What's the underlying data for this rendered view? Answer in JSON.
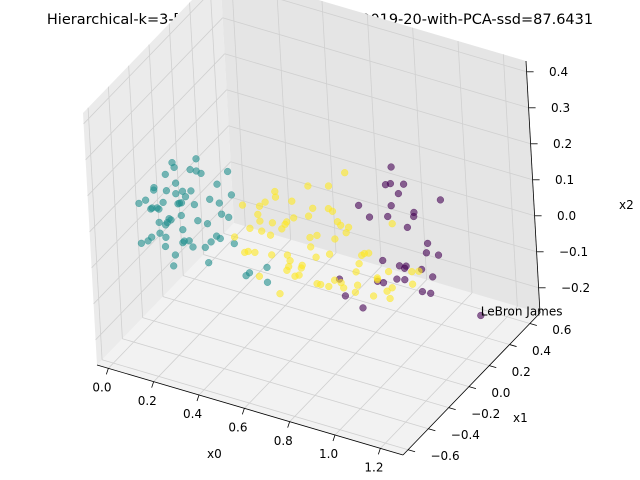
{
  "chart_data": {
    "type": "scatter",
    "title": "Hierarchical-k=3-['PTS', 'AST', 'REB', 'BLK']-2019-20-with-PCA-ssd=87.6431",
    "xlabel": "x0",
    "ylabel": "x1",
    "zlabel": "x2",
    "projection": "3d",
    "xlim": [
      -0.05,
      1.3
    ],
    "ylim": [
      -0.65,
      0.7
    ],
    "zlim": [
      -0.27,
      0.43
    ],
    "xticks": [
      "0.0",
      "0.2",
      "0.4",
      "0.6",
      "0.8",
      "1.0",
      "1.2"
    ],
    "yticks": [
      "−0.6",
      "−0.4",
      "−0.2",
      "0.0",
      "0.2",
      "0.4",
      "0.6"
    ],
    "zticks": [
      "−0.2",
      "−0.1",
      "0.0",
      "0.1",
      "0.2",
      "0.3",
      "0.4"
    ],
    "grid": true,
    "colors": {
      "cluster_0": "#440154",
      "cluster_1": "#21908d",
      "cluster_2": "#fde725"
    },
    "annotations": [
      {
        "text": "LeBron James",
        "x": 1.13,
        "y": 0.5,
        "z": -0.25
      }
    ],
    "series": [
      {
        "cluster": 0,
        "points": [
          [
            1.2,
            -0.35,
            0.35
          ],
          [
            1.15,
            -0.3,
            0.4
          ],
          [
            1.25,
            -0.4,
            0.4
          ],
          [
            1.28,
            -0.45,
            0.3
          ],
          [
            0.95,
            0.1,
            0.2
          ],
          [
            1.0,
            -0.05,
            0.25
          ],
          [
            1.05,
            -0.15,
            0.2
          ],
          [
            0.9,
            0.2,
            0.1
          ],
          [
            1.1,
            -0.2,
            0.05
          ],
          [
            0.95,
            0.3,
            0.05
          ],
          [
            1.0,
            0.1,
            -0.02
          ],
          [
            1.1,
            0.2,
            0.0
          ],
          [
            0.85,
            0.35,
            -0.12
          ],
          [
            0.9,
            0.45,
            -0.15
          ],
          [
            0.8,
            0.5,
            -0.18
          ],
          [
            0.75,
            0.4,
            -0.2
          ],
          [
            0.7,
            0.3,
            -0.25
          ],
          [
            0.8,
            0.3,
            -0.1
          ],
          [
            0.95,
            0.4,
            -0.08
          ],
          [
            0.65,
            0.2,
            -0.15
          ],
          [
            0.7,
            0.45,
            -0.22
          ],
          [
            0.85,
            0.55,
            -0.25
          ],
          [
            0.75,
            0.6,
            -0.25
          ],
          [
            0.9,
            0.55,
            -0.2
          ],
          [
            1.0,
            0.2,
            0.1
          ],
          [
            0.85,
            0.0,
            0.15
          ],
          [
            1.15,
            0.0,
            0.1
          ],
          [
            0.8,
            0.2,
            0.05
          ],
          [
            1.2,
            -0.1,
            0.0
          ],
          [
            1.13,
            0.5,
            -0.25
          ],
          [
            0.6,
            0.35,
            -0.25
          ],
          [
            1.05,
            0.35,
            0.1
          ]
        ]
      },
      {
        "cluster": 1,
        "points": [
          [
            0.05,
            -0.2,
            0.05
          ],
          [
            0.08,
            -0.22,
            0.08
          ],
          [
            0.1,
            -0.25,
            0.03
          ],
          [
            0.12,
            -0.18,
            0.1
          ],
          [
            0.06,
            -0.15,
            0.0
          ],
          [
            0.14,
            -0.28,
            0.06
          ],
          [
            0.03,
            -0.24,
            -0.02
          ],
          [
            0.16,
            -0.2,
            0.12
          ],
          [
            0.09,
            -0.3,
            0.09
          ],
          [
            0.11,
            -0.12,
            0.02
          ],
          [
            0.18,
            -0.25,
            0.0
          ],
          [
            0.04,
            -0.1,
            0.07
          ],
          [
            0.2,
            -0.3,
            0.05
          ],
          [
            0.13,
            -0.16,
            -0.04
          ],
          [
            0.07,
            -0.28,
            0.13
          ],
          [
            0.15,
            -0.1,
            0.09
          ],
          [
            0.22,
            -0.22,
            0.1
          ],
          [
            0.01,
            -0.18,
            0.04
          ],
          [
            0.17,
            -0.32,
            -0.02
          ],
          [
            0.1,
            -0.05,
            0.05
          ],
          [
            0.24,
            -0.15,
            0.03
          ],
          [
            0.05,
            -0.32,
            0.11
          ],
          [
            0.19,
            -0.08,
            0.14
          ],
          [
            0.12,
            -0.35,
            0.07
          ],
          [
            0.26,
            -0.28,
            0.08
          ],
          [
            0.02,
            -0.06,
            0.1
          ],
          [
            0.21,
            -0.12,
            -0.05
          ],
          [
            0.08,
            -0.38,
            0.02
          ],
          [
            0.14,
            -0.02,
            0.12
          ],
          [
            0.28,
            -0.2,
            0.12
          ],
          [
            0.0,
            -0.28,
            0.08
          ],
          [
            0.18,
            -0.38,
            0.1
          ],
          [
            0.25,
            -0.05,
            0.06
          ],
          [
            0.09,
            -0.12,
            0.15
          ],
          [
            0.3,
            -0.25,
            0.02
          ],
          [
            0.16,
            -0.26,
            0.16
          ],
          [
            0.04,
            -0.36,
            0.0
          ],
          [
            0.22,
            -0.34,
            0.14
          ],
          [
            0.27,
            -0.1,
            -0.02
          ],
          [
            0.12,
            -0.08,
            -0.06
          ],
          [
            0.19,
            -0.18,
            0.18
          ],
          [
            0.07,
            -0.2,
            -0.05
          ],
          [
            0.32,
            -0.18,
            0.08
          ],
          [
            0.11,
            -0.4,
            0.12
          ],
          [
            0.23,
            -0.02,
            0.1
          ],
          [
            0.35,
            -0.3,
            0.06
          ],
          [
            0.15,
            -0.3,
            -0.06
          ],
          [
            0.28,
            -0.38,
            0.04
          ],
          [
            0.06,
            -0.04,
            0.02
          ],
          [
            0.2,
            -0.14,
            0.2
          ],
          [
            0.34,
            -0.12,
            0.12
          ],
          [
            0.02,
            -0.14,
            -0.04
          ],
          [
            0.18,
            -0.42,
            0.06
          ],
          [
            0.26,
            -0.2,
            -0.06
          ],
          [
            0.1,
            -0.34,
            0.16
          ],
          [
            0.3,
            -0.06,
            0.16
          ],
          [
            0.38,
            -0.24,
            0.1
          ],
          [
            0.13,
            -0.22,
            0.2
          ],
          [
            0.24,
            -0.4,
            0.16
          ],
          [
            0.36,
            -0.16,
            0.0
          ],
          [
            0.32,
            0.05,
            -0.15
          ],
          [
            0.28,
            0.1,
            -0.18
          ],
          [
            0.35,
            0.15,
            -0.2
          ],
          [
            0.4,
            0.05,
            -0.12
          ]
        ]
      },
      {
        "cluster": 2,
        "points": [
          [
            0.45,
            -0.25,
            0.15
          ],
          [
            0.5,
            -0.2,
            0.1
          ],
          [
            0.55,
            -0.3,
            0.18
          ],
          [
            0.6,
            -0.25,
            0.2
          ],
          [
            0.48,
            -0.1,
            0.12
          ],
          [
            0.52,
            -0.15,
            0.05
          ],
          [
            0.58,
            -0.05,
            0.08
          ],
          [
            0.62,
            -0.2,
            0.12
          ],
          [
            0.66,
            -0.3,
            0.15
          ],
          [
            0.7,
            -0.15,
            0.22
          ],
          [
            0.44,
            -0.32,
            0.08
          ],
          [
            0.54,
            -0.38,
            0.14
          ],
          [
            0.68,
            -0.05,
            0.05
          ],
          [
            0.74,
            -0.2,
            0.18
          ],
          [
            0.5,
            0.0,
            0.02
          ],
          [
            0.6,
            0.05,
            0.0
          ],
          [
            0.72,
            -0.35,
            0.24
          ],
          [
            0.78,
            -0.1,
            0.15
          ],
          [
            0.46,
            -0.18,
            0.0
          ],
          [
            0.56,
            -0.08,
            -0.05
          ],
          [
            0.64,
            -0.12,
            -0.02
          ],
          [
            0.76,
            -0.28,
            0.1
          ],
          [
            0.82,
            -0.22,
            0.2
          ],
          [
            0.42,
            -0.05,
            0.06
          ],
          [
            0.58,
            -0.4,
            0.02
          ],
          [
            0.66,
            0.1,
            -0.05
          ],
          [
            0.8,
            0.0,
            0.08
          ],
          [
            0.86,
            -0.15,
            0.12
          ],
          [
            0.48,
            0.08,
            -0.08
          ],
          [
            0.62,
            -0.3,
            -0.05
          ],
          [
            0.7,
            0.05,
            -0.1
          ],
          [
            0.74,
            -0.4,
            0.05
          ],
          [
            0.84,
            0.05,
            0.0
          ],
          [
            0.9,
            -0.1,
            0.05
          ],
          [
            0.52,
            0.12,
            -0.12
          ],
          [
            0.68,
            0.15,
            -0.14
          ],
          [
            0.56,
            -0.45,
            0.1
          ],
          [
            0.88,
            -0.3,
            0.15
          ],
          [
            0.78,
            0.12,
            -0.06
          ],
          [
            0.94,
            -0.05,
            -0.02
          ],
          [
            0.6,
            0.2,
            -0.18
          ],
          [
            0.72,
            0.22,
            -0.16
          ],
          [
            0.44,
            0.15,
            -0.15
          ],
          [
            0.82,
            0.2,
            -0.12
          ],
          [
            0.92,
            0.1,
            -0.05
          ],
          [
            0.4,
            -0.15,
            -0.02
          ],
          [
            0.64,
            -0.48,
            0.18
          ],
          [
            0.98,
            -0.2,
            0.1
          ],
          [
            0.54,
            0.25,
            -0.2
          ],
          [
            0.76,
            0.28,
            -0.2
          ],
          [
            0.86,
            0.25,
            -0.15
          ],
          [
            0.5,
            0.3,
            -0.22
          ],
          [
            0.66,
            0.32,
            -0.22
          ],
          [
            1.0,
            0.15,
            -0.05
          ],
          [
            0.7,
            -0.5,
            0.22
          ],
          [
            0.58,
            0.38,
            -0.24
          ],
          [
            0.8,
            0.35,
            -0.22
          ],
          [
            0.46,
            0.22,
            -0.18
          ],
          [
            0.62,
            0.42,
            -0.2
          ],
          [
            0.88,
            0.4,
            -0.18
          ],
          [
            0.96,
            0.3,
            -0.1
          ],
          [
            0.74,
            0.45,
            -0.24
          ],
          [
            0.84,
            -0.45,
            0.25
          ],
          [
            0.4,
            0.1,
            -0.1
          ],
          [
            0.68,
            -0.42,
            0.28
          ],
          [
            0.92,
            -0.35,
            0.22
          ],
          [
            0.76,
            -0.48,
            0.12
          ],
          [
            0.56,
            0.18,
            -0.1
          ],
          [
            0.64,
            0.26,
            -0.02
          ],
          [
            0.82,
            -0.05,
            0.25
          ],
          [
            0.72,
            0.0,
            0.18
          ],
          [
            0.9,
            0.2,
            0.05
          ]
        ]
      }
    ]
  }
}
